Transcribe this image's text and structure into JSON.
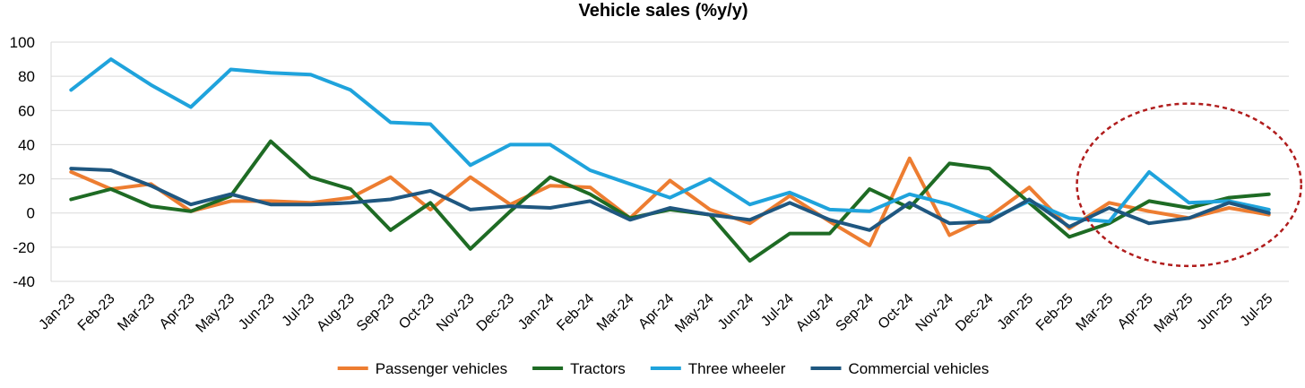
{
  "chart_data": {
    "type": "line",
    "title": "Vehicle sales (%y/y)",
    "xlabel": "",
    "ylabel": "",
    "ylim": [
      -40,
      100
    ],
    "yticks": [
      100,
      80,
      60,
      40,
      20,
      0,
      -20,
      -40
    ],
    "grid": "horizontal",
    "legend_position": "bottom",
    "categories": [
      "Jan-23",
      "Feb-23",
      "Mar-23",
      "Apr-23",
      "May-23",
      "Jun-23",
      "Jul-23",
      "Aug-23",
      "Sep-23",
      "Oct-23",
      "Nov-23",
      "Dec-23",
      "Jan-24",
      "Feb-24",
      "Mar-24",
      "Apr-24",
      "May-24",
      "Jun-24",
      "Jul-24",
      "Aug-24",
      "Sep-24",
      "Oct-24",
      "Nov-24",
      "Dec-24",
      "Jan-25",
      "Feb-25",
      "Mar-25",
      "Apr-25",
      "May-25",
      "Jun-25",
      "Jul-25"
    ],
    "series": [
      {
        "name": "Passenger vehicles",
        "color": "#ed7d31",
        "values": [
          24,
          14,
          17,
          1,
          7,
          7,
          6,
          9,
          21,
          2,
          21,
          5,
          16,
          15,
          -3,
          19,
          2,
          -6,
          10,
          -5,
          -19,
          32,
          -13,
          -2,
          15,
          -9,
          6,
          1,
          -3,
          3,
          -1
        ]
      },
      {
        "name": "Tractors",
        "color": "#1e6b24",
        "values": [
          8,
          14,
          4,
          1,
          10,
          42,
          21,
          14,
          -10,
          6,
          -21,
          1,
          21,
          11,
          -3,
          2,
          -1,
          -28,
          -12,
          -12,
          14,
          3,
          29,
          26,
          6,
          -14,
          -6,
          7,
          3,
          9,
          11
        ]
      },
      {
        "name": "Three wheeler",
        "color": "#1fa3dc",
        "values": [
          72,
          90,
          75,
          62,
          84,
          82,
          81,
          72,
          53,
          52,
          28,
          40,
          40,
          25,
          17,
          9,
          20,
          5,
          12,
          2,
          1,
          11,
          5,
          -4,
          7,
          -3,
          -5,
          24,
          6,
          7,
          2
        ]
      },
      {
        "name": "Commercial vehicles",
        "color": "#1f5780",
        "values": [
          26,
          25,
          16,
          5,
          11,
          5,
          5,
          6,
          8,
          13,
          2,
          4,
          3,
          7,
          -4,
          3,
          -1,
          -4,
          6,
          -4,
          -10,
          6,
          -6,
          -5,
          8,
          -8,
          3,
          -6,
          -3,
          6,
          0
        ]
      }
    ],
    "annotations": [
      {
        "type": "ellipse",
        "style": "dashed",
        "color": "#b01c1c",
        "covers_categories": [
          "Mar-25",
          "Jul-25"
        ]
      }
    ]
  }
}
